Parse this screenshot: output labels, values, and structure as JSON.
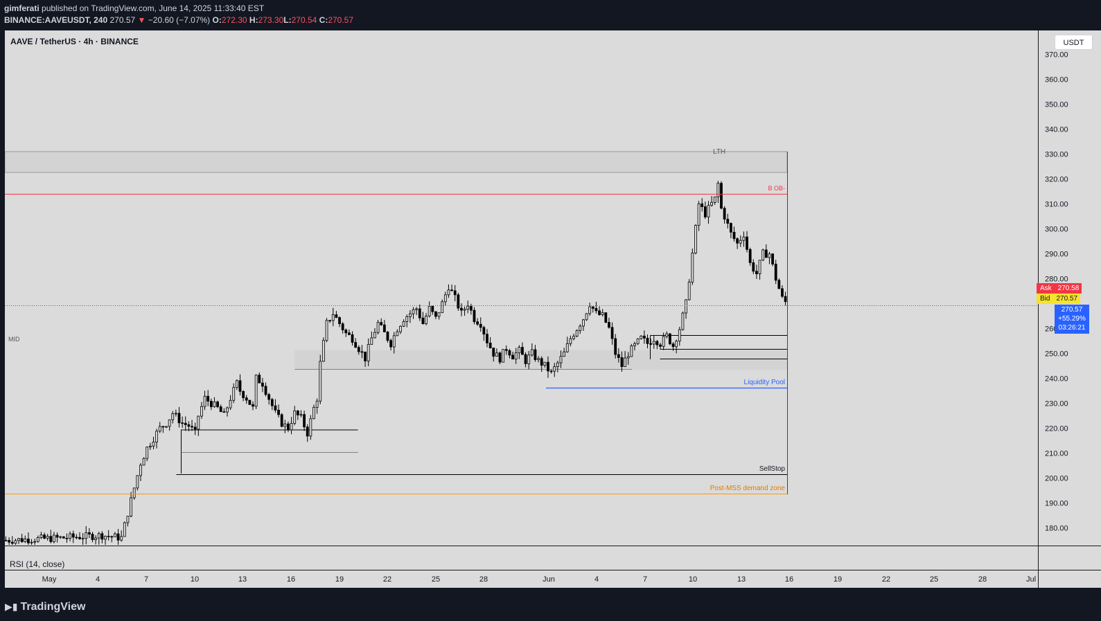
{
  "header": {
    "publisher": "gimferati",
    "published_text": "published on TradingView.com, June 14, 2025 11:33:40 EST",
    "symbol": "BINANCE:AAVEUSDT, 240",
    "last_price": "270.57",
    "change_arrow": "▼",
    "change": "−20.60 (−7.07%)",
    "o_label": "O:",
    "o": "272.30",
    "h_label": "H:",
    "h": "273.30",
    "l_label": "L:",
    "l": "270.54",
    "c_label": "C:",
    "c": "270.57"
  },
  "chart_title": "AAVE / TetherUS · 4h · BINANCE",
  "unit": "USDT",
  "rsi_label": "RSI (14, close)",
  "annotations": {
    "lth": "LTH",
    "b_ob": "B OB-",
    "mid": "MID",
    "liquidity_pool": "Liquidity Pool",
    "sellstop": "SellStop",
    "post_mss": "Post-MSS demand zone"
  },
  "price_tags": {
    "ask_label": "Ask",
    "ask": "270.58",
    "bid_label": "Bid",
    "bid": "270.57",
    "last": "270.57",
    "change_pct": "+55.29%",
    "countdown": "03:26:21"
  },
  "footer": {
    "brand": "TradingView",
    "logo_icon": "tradingview-logo-icon"
  },
  "colors": {
    "background": "#131722",
    "pane": "#dbdbdb",
    "candle": "#000000",
    "red_level": "#f23645",
    "blue_level": "#2962ff",
    "orange_level": "#ff9800",
    "ask": "#f23645",
    "bid": "#f5e32b",
    "last": "#2962ff"
  },
  "chart_data": {
    "type": "candlestick",
    "y_ticks": [
      "370.00",
      "360.00",
      "350.00",
      "340.00",
      "330.00",
      "320.00",
      "310.00",
      "300.00",
      "290.00",
      "280.00",
      "260.00",
      "250.00",
      "240.00",
      "230.00",
      "220.00",
      "210.00",
      "200.00",
      "190.00",
      "180.00"
    ],
    "x_ticks": [
      "May",
      "4",
      "7",
      "10",
      "13",
      "16",
      "19",
      "22",
      "25",
      "28",
      "Jun",
      "4",
      "7",
      "10",
      "13",
      "16",
      "19",
      "22",
      "25",
      "28",
      "Jul"
    ],
    "ylim": [
      174,
      376
    ],
    "levels": [
      {
        "name": "LTH",
        "price": 324.5
      },
      {
        "name": "B OB-",
        "price": 315.3
      },
      {
        "name": "Liquidity Pool",
        "price": 237.6
      },
      {
        "name": "SellStop",
        "price": 202.5
      },
      {
        "name": "Post-MSS demand zone",
        "price": 195.0
      }
    ],
    "close_path": [
      [
        0,
        175
      ],
      [
        18,
        176
      ],
      [
        30,
        177
      ],
      [
        36,
        176
      ],
      [
        38,
        186
      ],
      [
        40,
        196
      ],
      [
        42,
        206
      ],
      [
        44,
        212
      ],
      [
        48,
        220
      ],
      [
        50,
        222
      ],
      [
        52,
        226
      ],
      [
        55,
        222
      ],
      [
        57,
        221
      ],
      [
        59,
        218
      ],
      [
        60,
        225
      ],
      [
        62,
        232
      ],
      [
        64,
        230
      ],
      [
        66,
        228
      ],
      [
        68,
        225
      ],
      [
        70,
        232
      ],
      [
        72,
        238
      ],
      [
        73,
        235
      ],
      [
        75,
        232
      ],
      [
        77,
        228
      ],
      [
        78,
        240
      ],
      [
        80,
        238
      ],
      [
        82,
        232
      ],
      [
        84,
        226
      ],
      [
        86,
        222
      ],
      [
        88,
        220
      ],
      [
        90,
        226
      ],
      [
        92,
        224
      ],
      [
        94,
        218
      ],
      [
        96,
        228
      ],
      [
        97,
        232
      ],
      [
        98,
        246
      ],
      [
        100,
        262
      ],
      [
        102,
        266
      ],
      [
        104,
        262
      ],
      [
        106,
        258
      ],
      [
        108,
        256
      ],
      [
        110,
        252
      ],
      [
        112,
        248
      ],
      [
        114,
        256
      ],
      [
        116,
        262
      ],
      [
        118,
        258
      ],
      [
        120,
        254
      ],
      [
        122,
        260
      ],
      [
        124,
        264
      ],
      [
        126,
        266
      ],
      [
        128,
        268
      ],
      [
        130,
        262
      ],
      [
        132,
        268
      ],
      [
        134,
        264
      ],
      [
        136,
        270
      ],
      [
        138,
        277
      ],
      [
        140,
        272
      ],
      [
        142,
        266
      ],
      [
        144,
        270
      ],
      [
        146,
        264
      ],
      [
        148,
        262
      ],
      [
        150,
        255
      ],
      [
        152,
        250
      ],
      [
        154,
        248
      ],
      [
        156,
        252
      ],
      [
        158,
        249
      ],
      [
        160,
        251
      ],
      [
        162,
        247
      ],
      [
        164,
        250
      ],
      [
        166,
        247
      ],
      [
        168,
        245
      ],
      [
        170,
        242
      ],
      [
        172,
        246
      ],
      [
        174,
        250
      ],
      [
        176,
        256
      ],
      [
        178,
        260
      ],
      [
        180,
        264
      ],
      [
        182,
        270
      ],
      [
        184,
        266
      ],
      [
        186,
        265
      ],
      [
        188,
        260
      ],
      [
        190,
        250
      ],
      [
        192,
        245
      ],
      [
        194,
        250
      ],
      [
        196,
        253
      ],
      [
        198,
        256
      ],
      [
        200,
        254
      ],
      [
        202,
        256
      ],
      [
        204,
        254
      ],
      [
        206,
        257
      ],
      [
        208,
        253
      ],
      [
        210,
        260
      ],
      [
        212,
        270
      ],
      [
        214,
        290
      ],
      [
        216,
        310
      ],
      [
        218,
        306
      ],
      [
        220,
        310
      ],
      [
        221,
        312
      ],
      [
        222,
        318
      ],
      [
        223,
        308
      ],
      [
        224,
        305
      ],
      [
        226,
        298
      ],
      [
        228,
        294
      ],
      [
        230,
        298
      ],
      [
        232,
        286
      ],
      [
        234,
        282
      ],
      [
        236,
        290
      ],
      [
        238,
        290
      ],
      [
        240,
        280
      ],
      [
        241,
        276
      ],
      [
        242,
        272
      ],
      [
        243,
        270.6
      ]
    ]
  }
}
